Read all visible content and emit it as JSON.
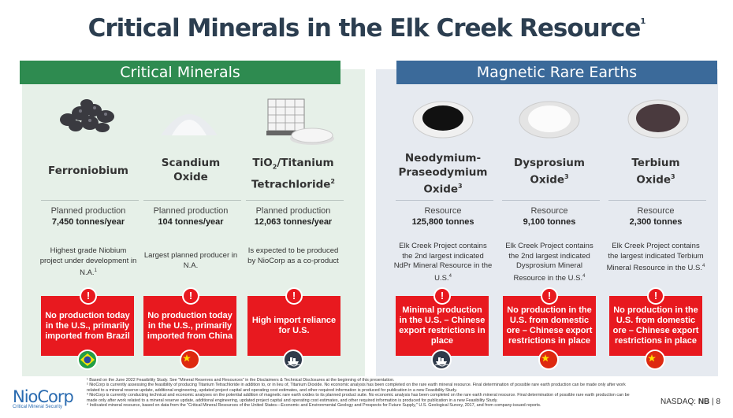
{
  "title": {
    "text": "Critical Minerals in the Elk Creek Resource",
    "sup": "1"
  },
  "sections": {
    "left_header": "Critical Minerals",
    "right_header": "Magnetic Rare Earths"
  },
  "minerals": [
    {
      "name_html_parts": [
        "Ferroniobium"
      ],
      "prod_label": "Planned production",
      "prod_value": "7,450 tonnes/year",
      "desc": "Highest grade Niobium project under development in N.A.",
      "desc_sup": "1",
      "alert": "No production today in the U.S., primarily imported  from Brazil",
      "flag": "brazil-flag-icon"
    },
    {
      "name_html_parts": [
        "Scandium",
        "Oxide"
      ],
      "prod_label": "Planned production",
      "prod_value": "104 tonnes/year",
      "desc": "Largest planned producer in N.A.",
      "desc_sup": "",
      "alert": "No production today in the U.S., primarily imported from China",
      "flag": "china-flag-icon"
    },
    {
      "name_line1_a": "TiO",
      "name_line1_sub": "2",
      "name_line1_b": "/Titanium",
      "name_line2": "Tetrachloride",
      "name_sup": "2",
      "prod_label": "Planned production",
      "prod_value": "12,063 tonnes/year",
      "desc": "Is expected to be produced by NioCorp as a co-product",
      "desc_sup": "",
      "alert": "High import reliance for U.S.",
      "flag": "ship-icon"
    },
    {
      "name_lines": [
        "Neodymium-",
        "Praseodymium",
        "Oxide"
      ],
      "name_sup": "3",
      "prod_label": "Resource",
      "prod_value": "125,800 tonnes",
      "desc": "Elk Creek Project contains the 2nd largest indicated NdPr Mineral Resource in the U.S.",
      "desc_sup": "4",
      "alert": "Minimal production in the U.S. – Chinese export restrictions in place",
      "flag": "ship-icon"
    },
    {
      "name_lines": [
        "Dysprosium",
        "Oxide"
      ],
      "name_sup": "3",
      "prod_label": "Resource",
      "prod_value": "9,100 tonnes",
      "desc": "Elk Creek Project contains the 2nd largest indicated Dysprosium Mineral Resource in the U.S.",
      "desc_sup": "4",
      "alert": "No production in the U.S. from domestic ore – Chinese export restrictions in place",
      "flag": "china-flag-icon"
    },
    {
      "name_lines": [
        "Terbium",
        "Oxide"
      ],
      "name_sup": "3",
      "prod_label": "Resource",
      "prod_value": "2,300 tonnes",
      "desc": "Elk Creek Project contains the largest indicated Terbium Mineral Resource in the U.S.",
      "desc_sup": "4",
      "alert": "No production in the U.S. from domestic ore – Chinese export restrictions in place",
      "flag": "china-flag-icon"
    }
  ],
  "alert_icon": "!",
  "footnotes": [
    "¹ Based on the June 2022 Feasibility Study. See \"Mineral Reserves and Resources\" in the Disclaimers & Technical Disclosures at the beginning of this presentation.",
    "² NioCorp is currently assessing the feasibility of producing Titanium Tetrachloride in addition to, or in lieu of, Titanium Dioxide. No economic analysis has been completed on the rare earth mineral resource. Final determination of possible rare earth production can be made only after work related to a mineral reserve update, additional engineering, updated project capital and operating cost estimates, and other required information is produced for publication in a new Feasibility Study.",
    "³ NioCorp is currently conducting technical and economic analyses on the potential addition of magnetic rare earth oxides to its planned product suite. No economic analysis has been completed on the rare earth mineral resource. Final determination of possible rare earth production can be made only after work related to a mineral reserve update, additional engineering, updated project capital and operating cost estimates, and other required information is produced for publication in a new Feasibility Study.",
    "⁴ Indicated mineral resource, based on data from the \"Critical Mineral Resources of the United States—Economic and Environmental Geology and Prospects for Future Supply,\" U.S. Geological Survey, 2017, and from company-issued reports."
  ],
  "logo": {
    "name": "NioCorp",
    "tagline": "Critical Mineral Security"
  },
  "footer": {
    "exchange": "NASDAQ: ",
    "ticker": "NB",
    "separator": " | ",
    "page": "8"
  },
  "colors": {
    "green": "#2e8b50",
    "blue": "#3b6a9a",
    "alert_red": "#e8191f",
    "title": "#2c3e50"
  }
}
